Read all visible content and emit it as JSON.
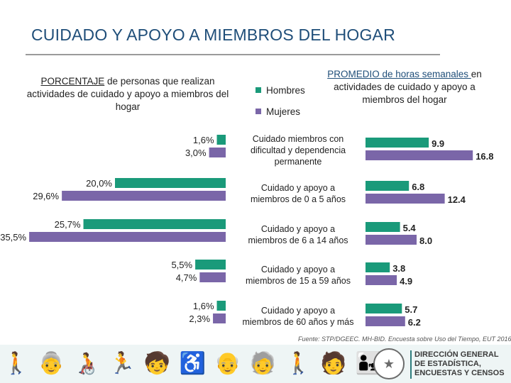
{
  "title": "CUIDADO Y APOYO A MIEMBROS DEL HOGAR",
  "left_subtitle": {
    "underlined": "PORCENTAJE",
    "rest": " de personas que realizan actividades de cuidado y apoyo a miembros del hogar"
  },
  "right_subtitle": {
    "underlined": "PROMEDIO de horas semanales ",
    "rest": "en actividades de cuidado y apoyo a miembros del hogar"
  },
  "legend": [
    {
      "name": "Hombres",
      "color": "#1a9a7a"
    },
    {
      "name": "Mujeres",
      "color": "#7a66a8"
    }
  ],
  "source": "Fuente: STP/DGEEC. MH-BID. Encuesta sobre Uso del Tiempo, EUT 2016",
  "footer": {
    "figures": "🚶 👵 🧑‍🦽 🏃 🧒 ♿ 👴 🧓 🚶 🧑 👨‍👧",
    "seal": "★",
    "institution": [
      "DIRECCIÓN GENERAL",
      "DE ESTADÍSTICA,",
      "ENCUESTAS Y CENSOS"
    ]
  },
  "chart_data": [
    {
      "type": "bar",
      "orientation": "horizontal",
      "title": "PORCENTAJE de personas que realizan actividades de cuidado y apoyo a miembros del hogar",
      "unit": "%",
      "categories": [
        "Cuidado miembros con dificultad y dependencia permanente",
        "Cuidado y apoyo a miembros de 0 a 5 años",
        "Cuidado y apoyo a miembros de 6 a 14 años",
        "Cuidado y apoyo a miembros de 15 a 59 años",
        "Cuidado y apoyo a miembros de 60 años y más"
      ],
      "series": [
        {
          "name": "Hombres",
          "values": [
            1.6,
            20.0,
            25.7,
            5.5,
            1.6
          ],
          "labels": [
            "1,6%",
            "20,0%",
            "25,7%",
            "5,5%",
            "1,6%"
          ]
        },
        {
          "name": "Mujeres",
          "values": [
            3.0,
            29.6,
            35.5,
            4.7,
            2.3
          ],
          "labels": [
            "3,0%",
            "29,6%",
            "35,5%",
            "4,7%",
            "2,3%"
          ]
        }
      ]
    },
    {
      "type": "bar",
      "orientation": "horizontal",
      "title": "PROMEDIO de horas semanales en actividades de cuidado y apoyo a miembros del hogar",
      "unit": "horas",
      "categories": [
        "Cuidado miembros con dificultad y dependencia permanente",
        "Cuidado y apoyo a miembros de 0 a 5 años",
        "Cuidado y apoyo a miembros de 6 a 14 años",
        "Cuidado y apoyo a miembros de 15 a 59 años",
        "Cuidado y apoyo a miembros de 60 años y más"
      ],
      "series": [
        {
          "name": "Hombres",
          "values": [
            9.9,
            6.8,
            5.4,
            3.8,
            5.7
          ],
          "labels": [
            "9.9",
            "6.8",
            "5.4",
            "3.8",
            "5.7"
          ]
        },
        {
          "name": "Mujeres",
          "values": [
            16.8,
            12.4,
            8.0,
            4.9,
            6.2
          ],
          "labels": [
            "16.8",
            "12.4",
            "8.0",
            "4.9",
            "6.2"
          ]
        }
      ]
    }
  ],
  "category_labels": [
    [
      "Cuidado miembros con",
      "dificultad y dependencia",
      "permanente"
    ],
    [
      "Cuidado y apoyo a",
      "miembros de 0 a 5 años"
    ],
    [
      "Cuidado y apoyo a",
      "miembros de 6 a 14 años"
    ],
    [
      "Cuidado y apoyo a",
      "miembros de 15 a 59 años"
    ],
    [
      "Cuidado y apoyo a",
      "miembros de 60 años y más"
    ]
  ]
}
